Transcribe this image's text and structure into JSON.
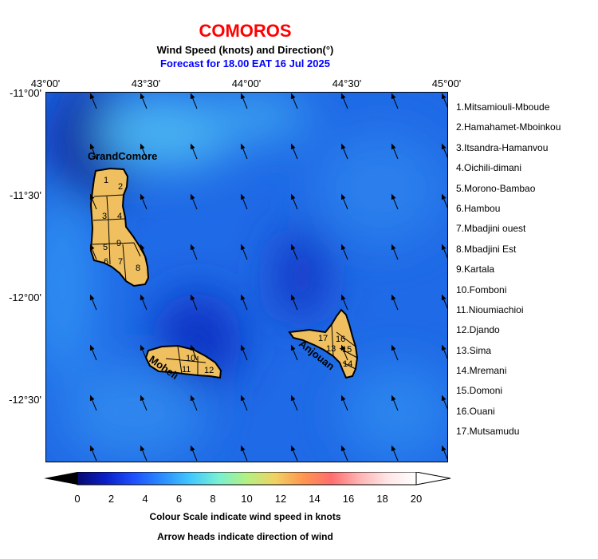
{
  "title": "COMOROS",
  "subtitle": "Wind Speed (knots) and Direction(°)",
  "forecast": "Forecast for  18.00 EAT 16 Jul 2025",
  "x_ticks": [
    "43°00'",
    "43°30'",
    "44°00'",
    "44°30'",
    "45°00'"
  ],
  "y_ticks": [
    "-11°00'",
    "-11°30'",
    "-12°00'",
    "-12°30'"
  ],
  "islands": {
    "grande_comore": "GrandComore",
    "moheli": "Moheli",
    "anjouan": "Anjouan"
  },
  "region_numbers": [
    "1",
    "2",
    "3",
    "4",
    "5",
    "6",
    "7",
    "8",
    "9",
    "10",
    "11",
    "12",
    "13",
    "14",
    "15",
    "16",
    "17"
  ],
  "legend": [
    "1.Mitsamiouli-Mboude",
    "2.Hamahamet-Mboinkou",
    "3.Itsandra-Hamanvou",
    "4.Oichili-dimani",
    "5.Morono-Bambao",
    "6.Hambou",
    "7.Mbadjini ouest",
    "8.Mbadjini Est",
    "9.Kartala",
    "10.Fomboni",
    "11.Nioumiachioi",
    "12.Djando",
    "13.Sima",
    "14.Mremani",
    "15.Domoni",
    "16.Ouani",
    "17.Mutsamudu"
  ],
  "colorbar": {
    "labels": [
      "0",
      "2",
      "4",
      "6",
      "8",
      "10",
      "12",
      "14",
      "16",
      "18",
      "20"
    ],
    "min": 0,
    "max": 20,
    "colors": [
      "#050a6e",
      "#0a1fc8",
      "#1e50ff",
      "#2b8cff",
      "#41c8ff",
      "#78f0d2",
      "#b4f082",
      "#f0d264",
      "#ff9650",
      "#ff6e6e",
      "#ffb4b4",
      "#ffe6e6",
      "#ffffff"
    ]
  },
  "footer": {
    "line1": "Colour Scale indicate wind speed in knots",
    "line2": "Arrow heads indicate direction of wind"
  },
  "colors": {
    "island_fill": "#f0c060",
    "title": "#ff0000",
    "forecast": "#0000ff"
  }
}
